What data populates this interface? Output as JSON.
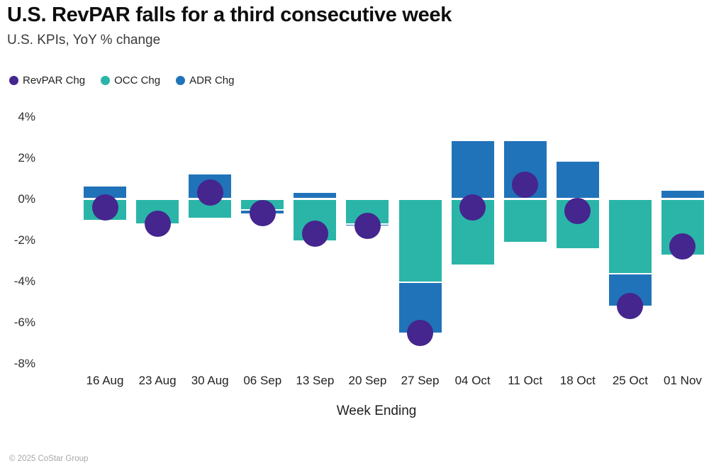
{
  "header": {
    "title": "U.S. RevPAR falls for a third consecutive week",
    "subtitle": "U.S. KPIs, YoY % change"
  },
  "legend": [
    {
      "label": "RevPAR Chg",
      "color": "#45258e"
    },
    {
      "label": "OCC Chg",
      "color": "#2ab5a8"
    },
    {
      "label": "ADR Chg",
      "color": "#2173b9"
    }
  ],
  "chart_data": {
    "type": "bar",
    "title": "U.S. RevPAR falls for a third consecutive week",
    "subtitle": "U.S. KPIs, YoY % change",
    "xlabel": "Week Ending",
    "ylabel": "YoY % change",
    "categories": [
      "16 Aug",
      "23 Aug",
      "30 Aug",
      "06 Sep",
      "13 Sep",
      "20 Sep",
      "27 Sep",
      "04 Oct",
      "11 Oct",
      "18 Oct",
      "25 Oct",
      "01 Nov"
    ],
    "series": [
      {
        "name": "OCC Chg",
        "render": "stacked-bar",
        "color": "#2ab5a8",
        "values": [
          -1.0,
          -1.2,
          -0.9,
          -0.5,
          -2.0,
          -1.2,
          -4.0,
          -3.2,
          -2.1,
          -2.4,
          -3.6,
          -2.7
        ]
      },
      {
        "name": "ADR Chg",
        "render": "stacked-bar",
        "color": "#2173b9",
        "values": [
          0.6,
          0.0,
          1.2,
          -0.2,
          0.3,
          -0.1,
          -2.5,
          2.8,
          2.8,
          1.8,
          -1.6,
          0.4
        ]
      },
      {
        "name": "RevPAR Chg",
        "render": "point",
        "color": "#45258e",
        "values": [
          -0.4,
          -1.2,
          0.3,
          -0.7,
          -1.7,
          -1.3,
          -6.5,
          -0.4,
          0.7,
          -0.6,
          -5.2,
          -2.3
        ]
      }
    ],
    "yticks": [
      4,
      2,
      0,
      -2,
      -4,
      -6,
      -8
    ],
    "ytick_suffix": "%",
    "ylim": [
      -8.6,
      4.6
    ],
    "grid": false,
    "legend_position": "top-left",
    "unit": "percent"
  },
  "footer": {
    "copyright": "© 2025 CoStar Group"
  }
}
